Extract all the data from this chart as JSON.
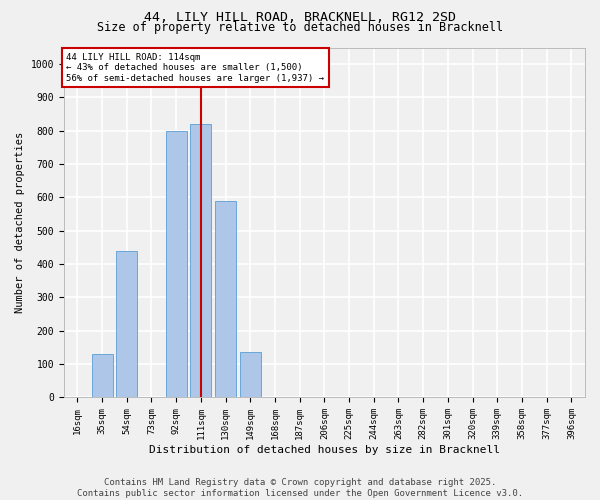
{
  "title_line1": "44, LILY HILL ROAD, BRACKNELL, RG12 2SD",
  "title_line2": "Size of property relative to detached houses in Bracknell",
  "xlabel": "Distribution of detached houses by size in Bracknell",
  "ylabel": "Number of detached properties",
  "categories": [
    "16sqm",
    "35sqm",
    "54sqm",
    "73sqm",
    "92sqm",
    "111sqm",
    "130sqm",
    "149sqm",
    "168sqm",
    "187sqm",
    "206sqm",
    "225sqm",
    "244sqm",
    "263sqm",
    "282sqm",
    "301sqm",
    "320sqm",
    "339sqm",
    "358sqm",
    "377sqm",
    "396sqm"
  ],
  "values": [
    0,
    130,
    440,
    0,
    800,
    820,
    590,
    135,
    0,
    0,
    0,
    0,
    0,
    0,
    0,
    0,
    0,
    0,
    0,
    0,
    0
  ],
  "bar_color": "#aec6e8",
  "bar_edge_color": "#5a9fd4",
  "vline_index": 5,
  "vline_color": "#cc0000",
  "annotation_text": "44 LILY HILL ROAD: 114sqm\n← 43% of detached houses are smaller (1,500)\n56% of semi-detached houses are larger (1,937) →",
  "ylim": [
    0,
    1050
  ],
  "yticks": [
    0,
    100,
    200,
    300,
    400,
    500,
    600,
    700,
    800,
    900,
    1000
  ],
  "footer_text": "Contains HM Land Registry data © Crown copyright and database right 2025.\nContains public sector information licensed under the Open Government Licence v3.0.",
  "bg_color": "#f0f0f0",
  "grid_color": "#ffffff",
  "title_fontsize": 9.5,
  "subtitle_fontsize": 8.5,
  "xlabel_fontsize": 8,
  "ylabel_fontsize": 7.5,
  "tick_fontsize": 6.5,
  "annot_fontsize": 6.5,
  "footer_fontsize": 6.5
}
